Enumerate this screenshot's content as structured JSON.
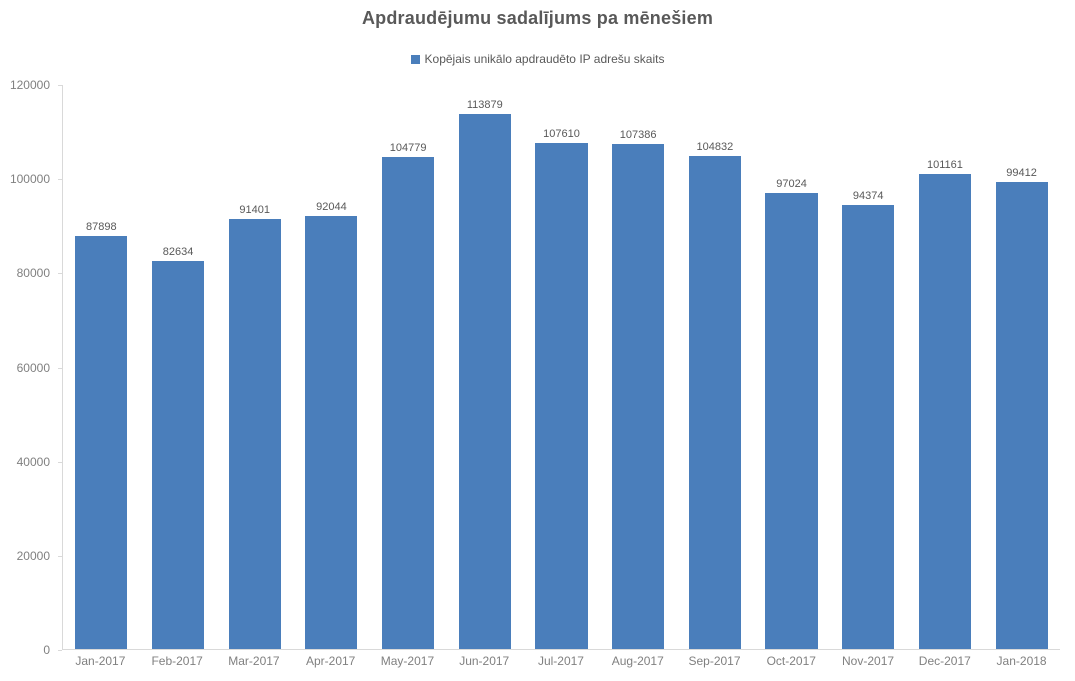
{
  "title": "Apdraudējumu sadalījums pa mēnešiem",
  "legend": {
    "label": "Kopējais unikālo apdraudēto IP adrešu skaits"
  },
  "colors": {
    "bar": "#4a7ebb",
    "title_text": "#595959",
    "axis_text": "#808080",
    "axis_line": "#d9d9d9"
  },
  "chart_data": {
    "type": "bar",
    "title": "Apdraudējumu sadalījums pa mēnešiem",
    "legend_entries": [
      "Kopējais unikālo apdraudēto IP adrešu skaits"
    ],
    "legend_position": "top",
    "grid": false,
    "categories": [
      "Jan-2017",
      "Feb-2017",
      "Mar-2017",
      "Apr-2017",
      "May-2017",
      "Jun-2017",
      "Jul-2017",
      "Aug-2017",
      "Sep-2017",
      "Oct-2017",
      "Nov-2017",
      "Dec-2017",
      "Jan-2018"
    ],
    "values": [
      87898,
      82634,
      91401,
      92044,
      104779,
      113879,
      107610,
      107386,
      104832,
      97024,
      94374,
      101161,
      99412
    ],
    "xlabel": "",
    "ylabel": "",
    "ylim": [
      0,
      120000
    ],
    "yticks": [
      0,
      20000,
      40000,
      60000,
      80000,
      100000,
      120000
    ]
  }
}
